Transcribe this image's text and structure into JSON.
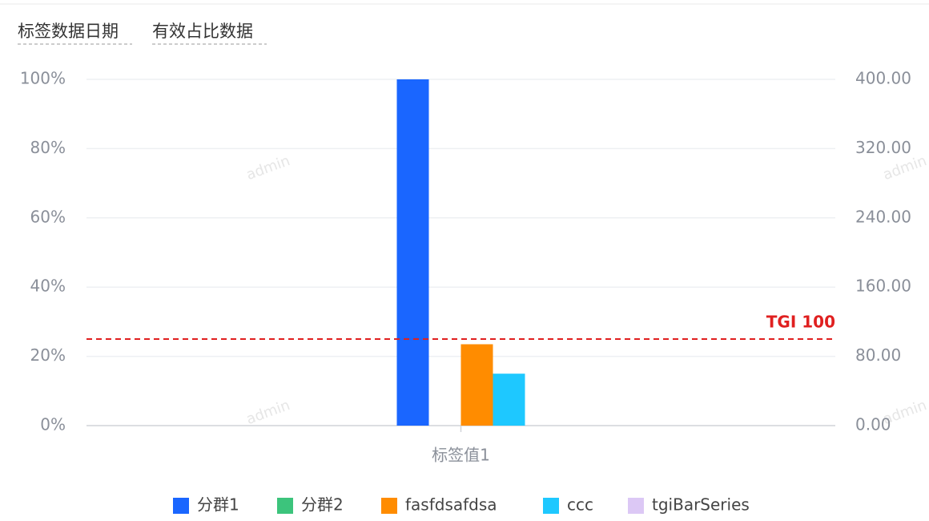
{
  "header": {
    "items": [
      "标签数据日期",
      "有效占比数据"
    ]
  },
  "watermark": "admin",
  "chart_data": {
    "type": "bar",
    "categories": [
      "标签值1"
    ],
    "series": [
      {
        "name": "分群1",
        "color": "#1a66ff",
        "values": [
          100
        ]
      },
      {
        "name": "分群2",
        "color": "#3cc47c",
        "values": [
          0
        ]
      },
      {
        "name": "fasfdsafdsa",
        "color": "#ff8c00",
        "values": [
          23.5
        ]
      },
      {
        "name": "ccc",
        "color": "#1ec8ff",
        "values": [
          15
        ]
      },
      {
        "name": "tgiBarSeries",
        "color": "#dcc8f5",
        "values": [
          null
        ]
      }
    ],
    "ylim": [
      0,
      100
    ],
    "yticks": [
      {
        "value": 0,
        "label": "0%"
      },
      {
        "value": 20,
        "label": "20%"
      },
      {
        "value": 40,
        "label": "40%"
      },
      {
        "value": 60,
        "label": "60%"
      },
      {
        "value": 80,
        "label": "80%"
      },
      {
        "value": 100,
        "label": "100%"
      }
    ],
    "y2lim": [
      0,
      400
    ],
    "y2ticks": [
      {
        "value": 0,
        "label": "0.00"
      },
      {
        "value": 80,
        "label": "80.00"
      },
      {
        "value": 160,
        "label": "160.00"
      },
      {
        "value": 240,
        "label": "240.00"
      },
      {
        "value": 320,
        "label": "320.00"
      },
      {
        "value": 400,
        "label": "400.00"
      }
    ],
    "grid": true,
    "reference_line": {
      "label": "TGI 100",
      "value": 100,
      "axis": "y2",
      "color": "#e02020"
    },
    "legend": "bottom"
  }
}
